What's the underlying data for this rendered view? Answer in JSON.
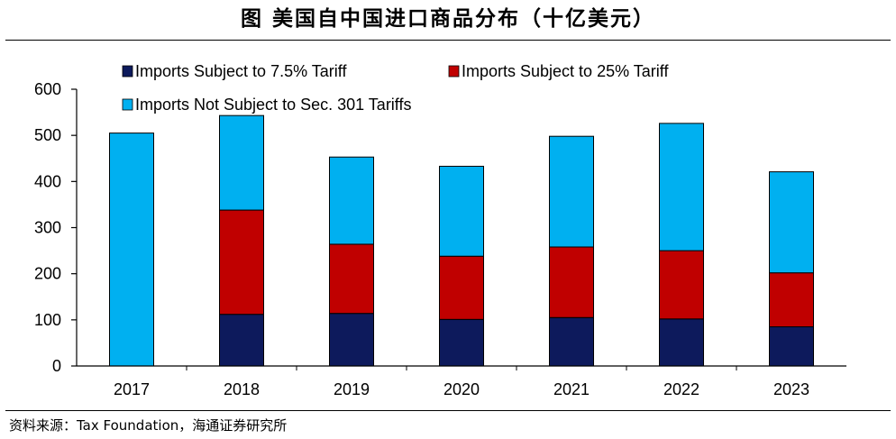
{
  "header": {
    "title": "图 美国自中国进口商品分布（十亿美元）"
  },
  "footer": {
    "source": "资料来源：Tax Foundation，海通证券研究所"
  },
  "chart_data": {
    "type": "bar",
    "stacked": true,
    "categories": [
      "2017",
      "2018",
      "2019",
      "2020",
      "2021",
      "2022",
      "2023"
    ],
    "series": [
      {
        "name": "Imports Subject to 7.5% Tariff",
        "color": "#0d1a5c",
        "values": [
          0,
          112,
          114,
          101,
          105,
          102,
          85
        ]
      },
      {
        "name": "Imports Subject to 25% Tariff",
        "color": "#c00000",
        "values": [
          0,
          226,
          150,
          137,
          153,
          148,
          117
        ]
      },
      {
        "name": "Imports Not Subject to Sec. 301 Tariffs",
        "color": "#00b0f0",
        "values": [
          505,
          205,
          189,
          195,
          240,
          276,
          219
        ]
      }
    ],
    "ylim": [
      0,
      600
    ],
    "yticks": [
      "0",
      "100",
      "200",
      "300",
      "400",
      "500",
      "600"
    ],
    "grid": false,
    "legend_position": "top-left"
  }
}
